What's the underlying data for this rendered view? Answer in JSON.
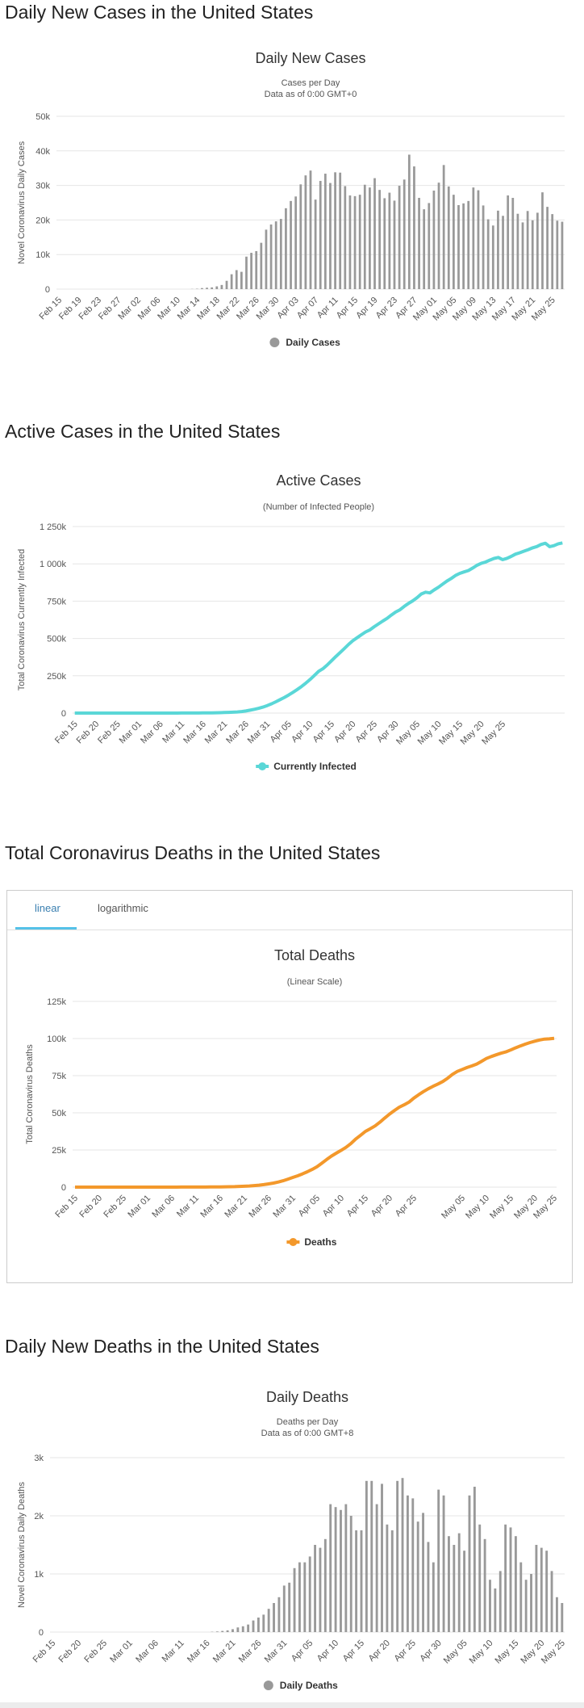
{
  "sections": {
    "daily_cases_title": "Daily New Cases in the United States",
    "active_title": "Active Cases in the United States",
    "deaths_title": "Total Coronavirus Deaths in the United States",
    "daily_deaths_title": "Daily New Deaths in the United States"
  },
  "tabs": {
    "linear": "linear",
    "logarithmic": "logarithmic",
    "active": "linear"
  },
  "colors": {
    "bars": "#999999",
    "active_line": "#5ad7d7",
    "deaths_line": "#f3982b",
    "tab_accent": "#55c1e8"
  },
  "chart_data": [
    {
      "id": "daily_cases",
      "type": "bar",
      "title": "Daily New Cases",
      "subtitle": [
        "Cases per Day",
        "Data as of 0:00 GMT+0"
      ],
      "ylabel": "Novel Coronavirus Daily Cases",
      "xlabel": "",
      "ylim": [
        0,
        50000
      ],
      "yticks": [
        0,
        10000,
        20000,
        30000,
        40000,
        50000
      ],
      "ytick_labels": [
        "0",
        "10k",
        "20k",
        "30k",
        "40k",
        "50k"
      ],
      "x_labels": [
        "Feb 15",
        "Feb 19",
        "Feb 23",
        "Feb 27",
        "Mar 02",
        "Mar 06",
        "Mar 10",
        "Mar 14",
        "Mar 18",
        "Mar 22",
        "Mar 26",
        "Mar 30",
        "Apr 03",
        "Apr 07",
        "Apr 11",
        "Apr 15",
        "Apr 19",
        "Apr 23",
        "Apr 27",
        "May 01",
        "May 05",
        "May 09",
        "May 13",
        "May 17",
        "May 21",
        "May 25"
      ],
      "label_every": 4,
      "grid": true,
      "legend": {
        "label": "Daily Cases",
        "position": "bottom"
      },
      "values": [
        0,
        0,
        0,
        0,
        0,
        0,
        0,
        0,
        0,
        0,
        0,
        0,
        0,
        0,
        0,
        0,
        0,
        0,
        0,
        0,
        0,
        0,
        0,
        0,
        0,
        0,
        0,
        50,
        100,
        300,
        400,
        500,
        800,
        1200,
        2400,
        4300,
        5500,
        5000,
        9400,
        10500,
        11000,
        13400,
        17200,
        18700,
        19600,
        20300,
        23400,
        25500,
        26800,
        30300,
        32900,
        34300,
        25900,
        31300,
        33400,
        30700,
        33800,
        33700,
        29800,
        27100,
        26900,
        27300,
        30200,
        29400,
        32100,
        28700,
        26300,
        27900,
        25600,
        29900,
        31700,
        38900,
        35500,
        26400,
        23100,
        24900,
        28500,
        30800,
        35900,
        29700,
        27300,
        24300,
        24800,
        25500,
        29400,
        28600,
        24200,
        20200,
        18400,
        22700,
        21200,
        27100,
        26400,
        21800,
        19300,
        22600,
        19900,
        22100,
        28000,
        23800,
        21700,
        19800,
        19500
      ]
    },
    {
      "id": "active_cases",
      "type": "line",
      "title": "Active Cases",
      "subtitle": [
        "(Number of Infected People)"
      ],
      "ylabel": "Total Coronavirus Currently Infected",
      "xlabel": "",
      "ylim": [
        0,
        1250000
      ],
      "yticks": [
        0,
        250000,
        500000,
        750000,
        1000000,
        1250000
      ],
      "ytick_labels": [
        "0",
        "250k",
        "500k",
        "750k",
        "1 000k",
        "1 250k"
      ],
      "x_labels": [
        "Feb 15",
        "Feb 20",
        "Feb 25",
        "Mar 01",
        "Mar 06",
        "Mar 11",
        "Mar 16",
        "Mar 21",
        "Mar 26",
        "Mar 31",
        "Apr 05",
        "Apr 10",
        "Apr 15",
        "Apr 20",
        "Apr 25",
        "Apr 30",
        "May 05",
        "May 10",
        "May 15",
        "May 20",
        "May 25"
      ],
      "label_every": 5,
      "grid": true,
      "legend": {
        "label": "Currently Infected",
        "position": "bottom"
      },
      "values": [
        13,
        13,
        13,
        13,
        13,
        13,
        13,
        13,
        13,
        13,
        13,
        13,
        13,
        15,
        30,
        40,
        50,
        60,
        70,
        80,
        100,
        130,
        160,
        200,
        250,
        320,
        400,
        500,
        640,
        800,
        1000,
        1300,
        1700,
        2200,
        2900,
        3700,
        4600,
        5900,
        7800,
        10500,
        14200,
        19400,
        25200,
        32000,
        40200,
        50500,
        62300,
        75500,
        90500,
        105000,
        121000,
        139000,
        158000,
        178000,
        201000,
        225000,
        252000,
        280000,
        297000,
        322000,
        350000,
        378000,
        405000,
        432000,
        460000,
        485000,
        505000,
        525000,
        544000,
        558000,
        579000,
        598000,
        617000,
        635000,
        657000,
        677000,
        692000,
        715000,
        735000,
        752000,
        773000,
        798000,
        810000,
        805000,
        825000,
        843000,
        864000,
        885000,
        902000,
        922000,
        936000,
        946000,
        955000,
        972000,
        990000,
        1003000,
        1012000,
        1025000,
        1036000,
        1043000,
        1028000,
        1037000,
        1050000,
        1065000,
        1074000,
        1085000,
        1095000,
        1107000,
        1116000,
        1130000,
        1138000,
        1115000,
        1122000,
        1134000,
        1140000
      ]
    },
    {
      "id": "total_deaths",
      "type": "line",
      "title": "Total Deaths",
      "subtitle": [
        "(Linear Scale)"
      ],
      "ylabel": "Total Coronavirus Deaths",
      "xlabel": "",
      "ylim": [
        0,
        125000
      ],
      "yticks": [
        0,
        25000,
        50000,
        75000,
        100000,
        125000
      ],
      "ytick_labels": [
        "0",
        "25k",
        "50k",
        "75k",
        "100k",
        "125k"
      ],
      "x_labels": [
        "Feb 15",
        "Feb 20",
        "Feb 25",
        "Mar 01",
        "Mar 06",
        "Mar 11",
        "Mar 16",
        "Mar 21",
        "Mar 26",
        "Mar 31",
        "Apr 05",
        "Apr 10",
        "Apr 15",
        "Apr 20",
        "Apr 25",
        "May 05",
        "May 10",
        "May 15",
        "May 20",
        "May 25"
      ],
      "label_positions": [
        0,
        5,
        10,
        15,
        20,
        25,
        30,
        35,
        40,
        45,
        50,
        55,
        60,
        65,
        70,
        80,
        85,
        90,
        95,
        100
      ],
      "grid": true,
      "legend": {
        "label": "Deaths",
        "position": "bottom"
      },
      "values": [
        0,
        0,
        0,
        0,
        0,
        0,
        0,
        0,
        0,
        0,
        0,
        0,
        0,
        0,
        1,
        2,
        6,
        9,
        11,
        12,
        17,
        22,
        28,
        36,
        41,
        48,
        57,
        68,
        86,
        109,
        150,
        205,
        260,
        340,
        470,
        590,
        780,
        1030,
        1300,
        1700,
        2200,
        2700,
        3400,
        4300,
        5400,
        6500,
        7600,
        8900,
        10300,
        11900,
        13700,
        16100,
        18600,
        20900,
        22900,
        24800,
        26800,
        29300,
        32400,
        34900,
        37500,
        39300,
        41200,
        43700,
        46500,
        49200,
        51600,
        53800,
        55400,
        57200,
        59900,
        62200,
        64300,
        66200,
        67900,
        69400,
        71100,
        73300,
        75900,
        77900,
        79200,
        80500,
        81600,
        82800,
        84700,
        86600,
        87900,
        89000,
        90100,
        91000,
        92300,
        93700,
        95000,
        96200,
        97300,
        98200,
        99000,
        99600,
        99800,
        100100
      ]
    },
    {
      "id": "daily_deaths",
      "type": "bar",
      "title": "Daily Deaths",
      "subtitle": [
        "Deaths per Day",
        "Data as of 0:00 GMT+8"
      ],
      "ylabel": "Novel Coronavirus Daily Deaths",
      "xlabel": "",
      "ylim": [
        0,
        3000
      ],
      "yticks": [
        0,
        1000,
        2000,
        3000
      ],
      "ytick_labels": [
        "0",
        "1k",
        "2k",
        "3k"
      ],
      "x_labels": [
        "Feb 15",
        "Feb 20",
        "Feb 25",
        "Mar 01",
        "Mar 06",
        "Mar 11",
        "Mar 16",
        "Mar 21",
        "Mar 26",
        "Mar 31",
        "Apr 05",
        "Apr 10",
        "Apr 15",
        "Apr 20",
        "Apr 25",
        "Apr 30",
        "May 05",
        "May 10",
        "May 15",
        "May 20",
        "May 25"
      ],
      "label_every": 5,
      "grid": true,
      "legend": {
        "label": "Daily Deaths",
        "position": "bottom"
      },
      "values": [
        0,
        0,
        0,
        0,
        0,
        0,
        0,
        0,
        0,
        0,
        0,
        0,
        0,
        0,
        0,
        0,
        0,
        0,
        0,
        0,
        0,
        0,
        0,
        0,
        0,
        0,
        0,
        0,
        0,
        0,
        0,
        5,
        10,
        20,
        30,
        50,
        80,
        100,
        130,
        200,
        250,
        300,
        400,
        500,
        600,
        800,
        850,
        1100,
        1200,
        1200,
        1300,
        1500,
        1450,
        1600,
        2200,
        2150,
        2100,
        2200,
        2000,
        1750,
        1750,
        2600,
        2600,
        2200,
        2550,
        1850,
        1750,
        2600,
        2650,
        2350,
        2300,
        1900,
        2050,
        1550,
        1200,
        2450,
        2350,
        1650,
        1500,
        1700,
        1400,
        2350,
        2500,
        1850,
        1600,
        900,
        750,
        1050,
        1850,
        1800,
        1650,
        1200,
        900,
        1000,
        1500,
        1450,
        1400,
        1050,
        600,
        500
      ]
    }
  ]
}
